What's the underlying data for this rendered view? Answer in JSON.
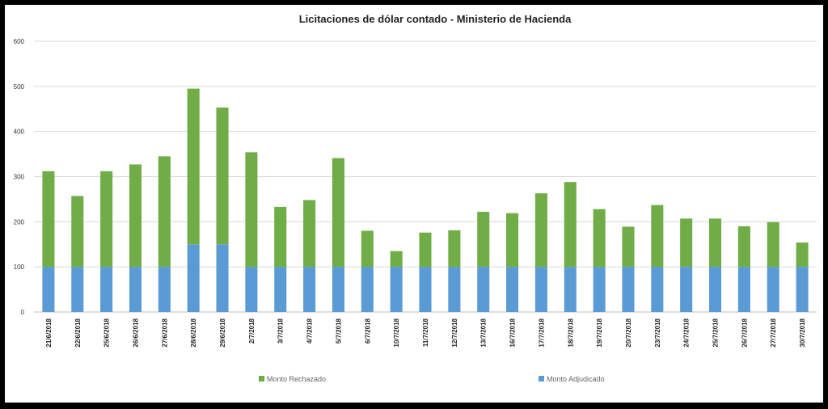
{
  "chart_data": {
    "type": "bar",
    "stacked": true,
    "title": "Licitaciones de dólar contado - Ministerio de Hacienda",
    "xlabel": "",
    "ylabel": "",
    "ylim": [
      0,
      600
    ],
    "yticks": [
      0,
      100,
      200,
      300,
      400,
      500,
      600
    ],
    "grid": true,
    "legend_position": "bottom",
    "categories": [
      "21/6/2018",
      "22/6/2018",
      "25/6/2018",
      "26/6/2018",
      "27/6/2018",
      "28/6/2018",
      "29/6/2018",
      "2/7/2018",
      "3/7/2018",
      "4/7/2018",
      "5/7/2018",
      "6/7/2018",
      "10/7/2018",
      "11/7/2018",
      "12/7/2018",
      "13/7/2018",
      "16/7/2018",
      "17/7/2018",
      "18/7/2018",
      "19/7/2018",
      "20/7/2018",
      "23/7/2018",
      "24/7/2018",
      "25/7/2018",
      "26/7/2018",
      "27/7/2018",
      "30/7/2018"
    ],
    "series": [
      {
        "name": "Monto Adjudicado",
        "color": "#5b9bd5",
        "values": [
          100,
          100,
          100,
          100,
          100,
          150,
          150,
          100,
          100,
          100,
          100,
          100,
          100,
          100,
          100,
          100,
          100,
          100,
          100,
          100,
          100,
          100,
          100,
          100,
          100,
          100,
          100
        ]
      },
      {
        "name": "Monto Rechazado",
        "color": "#70ad47",
        "values": [
          212,
          157,
          212,
          227,
          245,
          345,
          303,
          254,
          133,
          148,
          241,
          80,
          35,
          76,
          81,
          122,
          119,
          163,
          188,
          128,
          89,
          137,
          107,
          107,
          90,
          99,
          54
        ]
      }
    ]
  }
}
